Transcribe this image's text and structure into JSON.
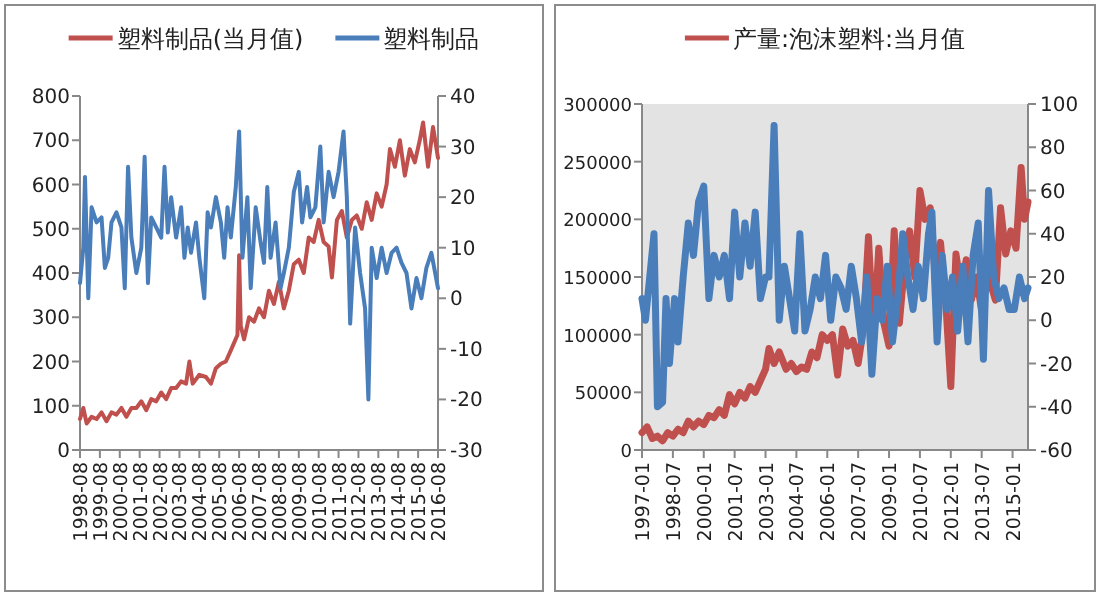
{
  "chart_data": [
    {
      "type": "line",
      "legend": "top",
      "xlim": [
        "1998-08",
        "2016-08"
      ],
      "xticks": [
        "1998-08",
        "1999-08",
        "2000-08",
        "2001-08",
        "2002-08",
        "2003-08",
        "2004-08",
        "2005-08",
        "2006-08",
        "2007-08",
        "2008-08",
        "2009-08",
        "2010-08",
        "2011-08",
        "2012-08",
        "2013-08",
        "2014-08",
        "2015-08",
        "2016-08"
      ],
      "ylim": [
        0,
        800
      ],
      "yticks": [
        0,
        100,
        200,
        300,
        400,
        500,
        600,
        700,
        800
      ],
      "y2lim": [
        -30,
        40
      ],
      "y2ticks": [
        -30,
        -20,
        -10,
        0,
        10,
        20,
        30,
        40
      ],
      "series": [
        {
          "name": "塑料制品(当月值)",
          "color": "#c0504d",
          "x": [
            "1998-08",
            "1998-10",
            "1998-12",
            "1999-03",
            "1999-06",
            "1999-09",
            "1999-12",
            "2000-03",
            "2000-06",
            "2000-09",
            "2000-12",
            "2001-03",
            "2001-06",
            "2001-09",
            "2001-12",
            "2002-03",
            "2002-06",
            "2002-09",
            "2002-12",
            "2003-03",
            "2003-06",
            "2003-09",
            "2003-12",
            "2004-02",
            "2004-04",
            "2004-08",
            "2004-12",
            "2005-03",
            "2005-06",
            "2005-09",
            "2005-12",
            "2006-03",
            "2006-07",
            "2006-08",
            "2006-09",
            "2006-11",
            "2007-02",
            "2007-05",
            "2007-08",
            "2007-11",
            "2008-02",
            "2008-05",
            "2008-08",
            "2008-11",
            "2009-02",
            "2009-05",
            "2009-08",
            "2009-11",
            "2010-02",
            "2010-05",
            "2010-08",
            "2010-11",
            "2011-02",
            "2011-04",
            "2011-07",
            "2011-10",
            "2012-01",
            "2012-04",
            "2012-07",
            "2012-10",
            "2013-01",
            "2013-04",
            "2013-07",
            "2013-10",
            "2014-01",
            "2014-03",
            "2014-06",
            "2014-09",
            "2014-12",
            "2015-03",
            "2015-06",
            "2015-09",
            "2015-11",
            "2016-02",
            "2016-05",
            "2016-08"
          ],
          "values": [
            70,
            95,
            60,
            75,
            70,
            85,
            65,
            85,
            80,
            95,
            75,
            95,
            95,
            110,
            90,
            115,
            110,
            130,
            115,
            140,
            140,
            155,
            150,
            200,
            150,
            170,
            165,
            150,
            185,
            195,
            200,
            225,
            260,
            440,
            280,
            250,
            300,
            290,
            320,
            300,
            360,
            330,
            380,
            320,
            360,
            420,
            430,
            400,
            480,
            470,
            520,
            470,
            460,
            390,
            520,
            540,
            480,
            520,
            530,
            500,
            560,
            520,
            580,
            550,
            600,
            680,
            640,
            700,
            620,
            680,
            650,
            700,
            740,
            640,
            730,
            660
          ]
        },
        {
          "name": "塑料制品",
          "color": "#4a7ebb",
          "axis": "y2",
          "x": [
            "1998-08",
            "1998-10",
            "1998-11",
            "1999-01",
            "1999-03",
            "1999-06",
            "1999-09",
            "1999-11",
            "2000-01",
            "2000-03",
            "2000-06",
            "2000-09",
            "2000-11",
            "2001-01",
            "2001-03",
            "2001-06",
            "2001-09",
            "2001-11",
            "2002-01",
            "2002-03",
            "2002-06",
            "2002-09",
            "2002-11",
            "2003-01",
            "2003-03",
            "2003-06",
            "2003-09",
            "2003-11",
            "2004-01",
            "2004-03",
            "2004-06",
            "2004-08",
            "2004-11",
            "2005-01",
            "2005-03",
            "2005-06",
            "2005-09",
            "2005-11",
            "2006-01",
            "2006-03",
            "2006-06",
            "2006-08",
            "2006-10",
            "2007-01",
            "2007-03",
            "2007-06",
            "2007-09",
            "2007-11",
            "2008-01",
            "2008-03",
            "2008-06",
            "2008-09",
            "2008-11",
            "2009-02",
            "2009-05",
            "2009-08",
            "2009-10",
            "2010-01",
            "2010-03",
            "2010-06",
            "2010-09",
            "2010-11",
            "2011-02",
            "2011-05",
            "2011-08",
            "2011-11",
            "2012-01",
            "2012-03",
            "2012-06",
            "2012-09",
            "2012-12",
            "2013-02",
            "2013-04",
            "2013-07",
            "2013-10",
            "2014-01",
            "2014-04",
            "2014-07",
            "2014-10",
            "2015-01",
            "2015-04",
            "2015-07",
            "2015-10",
            "2016-01",
            "2016-04",
            "2016-08"
          ],
          "values": [
            3,
            10,
            24,
            0,
            18,
            15,
            16,
            6,
            8,
            15,
            17,
            14,
            2,
            26,
            12,
            5,
            10,
            28,
            3,
            16,
            14,
            12,
            26,
            13,
            20,
            12,
            18,
            8,
            14,
            9,
            15,
            8,
            0,
            17,
            14,
            20,
            15,
            8,
            18,
            12,
            22,
            33,
            8,
            20,
            2,
            18,
            11,
            7,
            22,
            8,
            15,
            2,
            5,
            10,
            21,
            25,
            15,
            22,
            16,
            18,
            30,
            15,
            25,
            20,
            25,
            33,
            20,
            -5,
            14,
            5,
            -2,
            -20,
            10,
            4,
            10,
            5,
            9,
            10,
            7,
            5,
            -2,
            4,
            0,
            6,
            9,
            2
          ]
        }
      ]
    },
    {
      "type": "line",
      "legend": "top",
      "xlim": [
        "1997-01",
        "2015-10"
      ],
      "xticks": [
        "1997-01",
        "1998-07",
        "2000-01",
        "2001-07",
        "2003-01",
        "2004-07",
        "2006-01",
        "2007-07",
        "2009-01",
        "2010-07",
        "2012-01",
        "2013-07",
        "2015-01"
      ],
      "ylim": [
        0,
        300000
      ],
      "yticks": [
        0,
        50000,
        100000,
        150000,
        200000,
        250000,
        300000
      ],
      "y2lim": [
        -60,
        100
      ],
      "y2ticks": [
        -60,
        -40,
        -20,
        0,
        20,
        40,
        60,
        80,
        100
      ],
      "series": [
        {
          "name": "产量:泡沫塑料:当月值",
          "color": "#c0504d",
          "x": [
            "1997-01",
            "1997-04",
            "1997-07",
            "1997-10",
            "1998-01",
            "1998-04",
            "1998-07",
            "1998-10",
            "1999-01",
            "1999-04",
            "1999-07",
            "1999-10",
            "2000-01",
            "2000-04",
            "2000-07",
            "2000-10",
            "2001-01",
            "2001-04",
            "2001-07",
            "2001-10",
            "2002-01",
            "2002-04",
            "2002-07",
            "2002-10",
            "2003-01",
            "2003-03",
            "2003-06",
            "2003-09",
            "2004-01",
            "2004-04",
            "2004-07",
            "2004-10",
            "2005-01",
            "2005-04",
            "2005-07",
            "2005-10",
            "2006-01",
            "2006-04",
            "2006-07",
            "2006-10",
            "2007-01",
            "2007-04",
            "2007-07",
            "2007-10",
            "2008-01",
            "2008-04",
            "2008-07",
            "2008-10",
            "2009-01",
            "2009-04",
            "2009-07",
            "2009-10",
            "2010-01",
            "2010-04",
            "2010-07",
            "2010-10",
            "2011-01",
            "2011-04",
            "2011-07",
            "2011-10",
            "2012-01",
            "2012-04",
            "2012-07",
            "2012-10",
            "2013-01",
            "2013-04",
            "2013-07",
            "2013-10",
            "2014-01",
            "2014-03",
            "2014-06",
            "2014-09",
            "2014-12",
            "2015-03",
            "2015-06",
            "2015-08",
            "2015-10"
          ],
          "values": [
            15000,
            20000,
            10000,
            12000,
            8000,
            15000,
            12000,
            18000,
            15000,
            25000,
            20000,
            25000,
            22000,
            30000,
            28000,
            35000,
            30000,
            48000,
            40000,
            50000,
            45000,
            55000,
            50000,
            60000,
            70000,
            88000,
            75000,
            85000,
            70000,
            75000,
            68000,
            72000,
            70000,
            85000,
            80000,
            100000,
            95000,
            100000,
            65000,
            105000,
            90000,
            95000,
            75000,
            105000,
            185000,
            95000,
            175000,
            110000,
            90000,
            190000,
            110000,
            160000,
            190000,
            150000,
            225000,
            200000,
            210000,
            150000,
            180000,
            130000,
            55000,
            170000,
            140000,
            165000,
            130000,
            150000,
            120000,
            165000,
            140000,
            130000,
            210000,
            170000,
            190000,
            175000,
            245000,
            200000,
            215000
          ]
        },
        {
          "color": "#4a7ebb",
          "axis": "y2",
          "x": [
            "1997-01",
            "1997-03",
            "1997-08",
            "1997-10",
            "1998-01",
            "1998-03",
            "1998-05",
            "1998-08",
            "1998-10",
            "1999-01",
            "1999-04",
            "1999-07",
            "1999-10",
            "2000-01",
            "2000-04",
            "2000-07",
            "2000-10",
            "2001-01",
            "2001-04",
            "2001-07",
            "2001-10",
            "2002-01",
            "2002-04",
            "2002-07",
            "2002-10",
            "2003-01",
            "2003-03",
            "2003-06",
            "2003-09",
            "2003-12",
            "2004-03",
            "2004-06",
            "2004-09",
            "2004-12",
            "2005-03",
            "2005-06",
            "2005-09",
            "2005-12",
            "2006-03",
            "2006-06",
            "2006-09",
            "2006-12",
            "2007-03",
            "2007-06",
            "2007-09",
            "2007-12",
            "2008-03",
            "2008-06",
            "2008-09",
            "2008-12",
            "2009-03",
            "2009-06",
            "2009-09",
            "2009-12",
            "2010-03",
            "2010-06",
            "2010-09",
            "2010-12",
            "2011-02",
            "2011-05",
            "2011-08",
            "2011-11",
            "2012-02",
            "2012-05",
            "2012-08",
            "2012-11",
            "2013-02",
            "2013-05",
            "2013-08",
            "2013-11",
            "2014-02",
            "2014-05",
            "2014-08",
            "2014-11",
            "2015-02",
            "2015-05",
            "2015-08",
            "2015-10"
          ],
          "values": [
            10,
            0,
            40,
            -40,
            -38,
            10,
            -20,
            10,
            -10,
            20,
            45,
            30,
            55,
            62,
            10,
            30,
            20,
            30,
            10,
            50,
            20,
            45,
            25,
            50,
            10,
            20,
            20,
            90,
            0,
            25,
            10,
            -5,
            40,
            -5,
            5,
            20,
            10,
            30,
            0,
            20,
            15,
            5,
            25,
            10,
            -10,
            20,
            -25,
            10,
            0,
            25,
            -10,
            10,
            40,
            20,
            5,
            25,
            10,
            40,
            50,
            -10,
            30,
            5,
            20,
            -5,
            25,
            -10,
            30,
            45,
            -18,
            60,
            20,
            10,
            15,
            5,
            5,
            20,
            10,
            15
          ]
        }
      ]
    }
  ]
}
